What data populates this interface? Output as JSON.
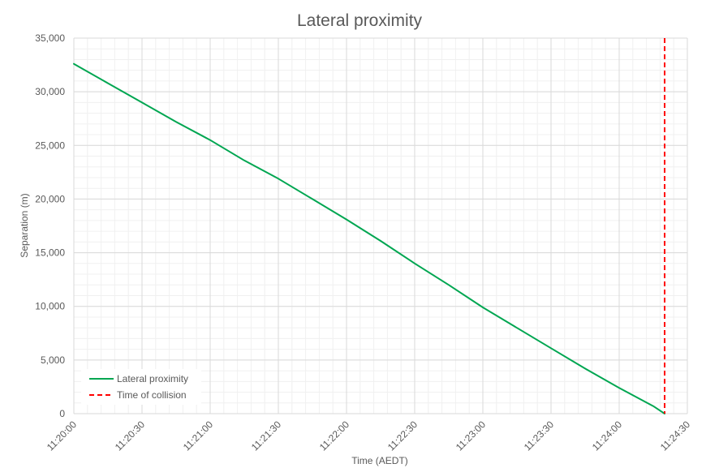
{
  "chart_data": {
    "type": "line",
    "title": "Lateral proximity",
    "xlabel": "Time (AEDT)",
    "ylabel": "Separation (m)",
    "xlim": [
      "11:20:00",
      "11:24:30"
    ],
    "ylim": [
      0,
      35000
    ],
    "x_ticks": [
      "11:20:00",
      "11:20:30",
      "11:21:00",
      "11:21:30",
      "11:22:00",
      "11:22:30",
      "11:23:00",
      "11:23:30",
      "11:24:00",
      "11:24:30"
    ],
    "y_ticks": [
      "0",
      "5,000",
      "10,000",
      "15,000",
      "20,000",
      "25,000",
      "30,000",
      "35,000"
    ],
    "grid": true,
    "legend": "bottom-left",
    "series": [
      {
        "name": "Lateral proximity",
        "color": "#00a651",
        "x": [
          "11:20:00",
          "11:20:15",
          "11:20:30",
          "11:20:45",
          "11:21:00",
          "11:21:15",
          "11:21:30",
          "11:21:45",
          "11:22:00",
          "11:22:15",
          "11:22:30",
          "11:22:45",
          "11:23:00",
          "11:23:15",
          "11:23:30",
          "11:23:45",
          "11:24:00",
          "11:24:15",
          "11:24:20"
        ],
        "y": [
          32600,
          30800,
          29000,
          27200,
          25500,
          23600,
          21900,
          20000,
          18100,
          16100,
          14000,
          12000,
          9900,
          8000,
          6100,
          4200,
          2400,
          700,
          0
        ]
      }
    ],
    "markers": [
      {
        "name": "Time of collision",
        "color": "#ff0000",
        "x": "11:24:20",
        "style": "dashed"
      }
    ]
  }
}
